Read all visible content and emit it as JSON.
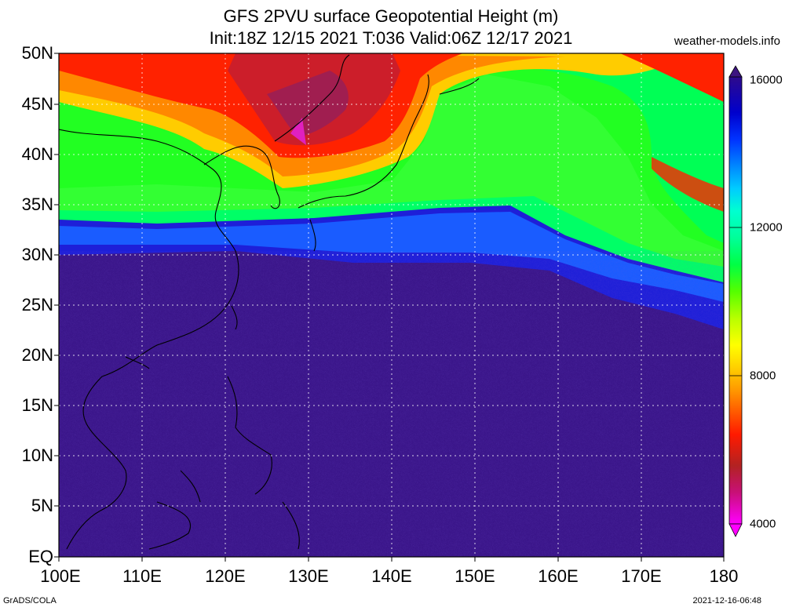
{
  "title": {
    "line1": "GFS 2PVU surface Geopotential Height (m)",
    "line2": "Init:18Z 12/15 2021 T:036 Valid:06Z 12/17 2021"
  },
  "site": "weather-models.info",
  "lat_labels": [
    "50N",
    "45N",
    "40N",
    "35N",
    "30N",
    "25N",
    "20N",
    "15N",
    "10N",
    "5N",
    "EQ"
  ],
  "lon_labels": [
    "100E",
    "110E",
    "120E",
    "130E",
    "140E",
    "150E",
    "160E",
    "170E",
    "180"
  ],
  "colorbar": {
    "labels": [
      "16000",
      "12000",
      "8000",
      "4000"
    ],
    "colors": [
      "#ff00ff",
      "#cc0080",
      "#b22222",
      "#ff0000",
      "#ff3300",
      "#ff6600",
      "#ff9900",
      "#ffcc00",
      "#ffff00",
      "#ccff00",
      "#99ff00",
      "#66ff00",
      "#33ff00",
      "#00ff33",
      "#00ff66",
      "#00ff99",
      "#00ffcc",
      "#00ccff",
      "#0099ff",
      "#0066ff",
      "#0033ff",
      "#0000ff",
      "#0000cc",
      "#1a0099",
      "#2e0a8c",
      "#3d1480"
    ]
  },
  "footer": {
    "left": "GrADS/COLA",
    "right": "2021-12-16-06:48"
  }
}
